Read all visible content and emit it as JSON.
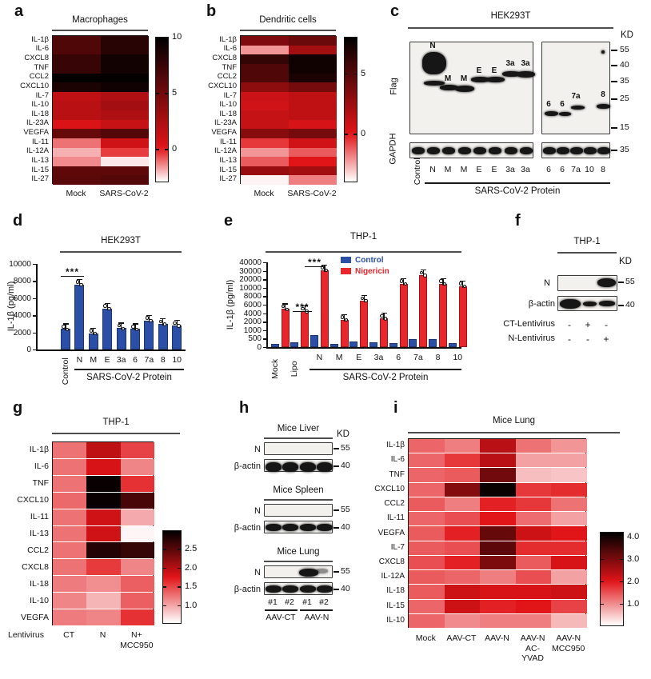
{
  "chart_data": {
    "a": {
      "type": "heatmap",
      "label": "a",
      "title": "Macrophages",
      "rows": [
        "IL-1β",
        "IL-6",
        "CXCL8",
        "TNF",
        "CCL2",
        "CXCL10",
        "IL-7",
        "IL-10",
        "IL-18",
        "IL-23A",
        "VEGFA",
        "IL-11",
        "IL-12A",
        "IL-13",
        "IL-15",
        "IL-27"
      ],
      "cols": [
        "Mock",
        "SARS-CoV-2"
      ],
      "col_sub": [
        "",
        ""
      ],
      "values": [
        [
          6.5,
          8.2
        ],
        [
          6.5,
          8.2
        ],
        [
          7.5,
          9.2
        ],
        [
          7.5,
          9.2
        ],
        [
          9.8,
          9.8
        ],
        [
          8.8,
          9.3
        ],
        [
          1.5,
          2.2
        ],
        [
          1.8,
          2.8
        ],
        [
          1.8,
          2.3
        ],
        [
          0.3,
          1.2
        ],
        [
          5.5,
          6.3
        ],
        [
          -1.2,
          0.8
        ],
        [
          -2.0,
          -0.5
        ],
        [
          -1.5,
          -2.7
        ],
        [
          5.8,
          5.8
        ],
        [
          6.0,
          6.3
        ]
      ],
      "scale": {
        "min": -3,
        "red": 0,
        "max": 10
      },
      "colorbar_ticks": [
        {
          "v": 10,
          "t": "10"
        },
        {
          "v": 5,
          "t": "5"
        },
        {
          "v": 0,
          "t": "0"
        }
      ]
    },
    "b": {
      "type": "heatmap",
      "label": "b",
      "title": "Dendritic cells",
      "rows": [
        "IL-1β",
        "IL-6",
        "CXCL8",
        "TNF",
        "CCL2",
        "CXCL10",
        "IL-7",
        "IL-10",
        "IL-18",
        "IL-23A",
        "VEGFA",
        "IL-11",
        "IL-12A",
        "IL-13",
        "IL-15",
        "IL-27"
      ],
      "cols": [
        "Mock",
        "SARS-CoV-2"
      ],
      "col_sub": [
        "",
        ""
      ],
      "values": [
        [
          3.5,
          4.2
        ],
        [
          -2.2,
          2.2
        ],
        [
          6.2,
          7.4
        ],
        [
          5.2,
          7.4
        ],
        [
          5.2,
          7.0
        ],
        [
          3.0,
          3.8
        ],
        [
          0.8,
          1.2
        ],
        [
          0.6,
          1.2
        ],
        [
          1.0,
          1.2
        ],
        [
          1.0,
          0.4
        ],
        [
          3.2,
          3.8
        ],
        [
          -0.6,
          0.6
        ],
        [
          -2.2,
          -1.2
        ],
        [
          -1.2,
          0.0
        ],
        [
          2.6,
          2.2
        ],
        [
          -3.8,
          -1.8
        ]
      ],
      "scale": {
        "min": -4,
        "red": 0,
        "max": 8
      },
      "colorbar_ticks": [
        {
          "v": 5,
          "t": "5"
        },
        {
          "v": 0,
          "t": "0"
        }
      ]
    },
    "d": {
      "type": "bar",
      "label": "d",
      "title": "HEK293T",
      "ylabel": "IL-1β (pg/ml)",
      "yticks": [
        {
          "v": 0,
          "t": "0"
        },
        {
          "v": 2000,
          "t": "2000"
        },
        {
          "v": 4000,
          "t": "4000"
        },
        {
          "v": 6000,
          "t": "6000"
        },
        {
          "v": 8000,
          "t": "8000"
        },
        {
          "v": 10000,
          "t": "10000"
        }
      ],
      "categories": [
        "Control",
        "N",
        "M",
        "E",
        "3a",
        "6",
        "7a",
        "8",
        "10"
      ],
      "values": [
        2400,
        7600,
        1900,
        4800,
        2500,
        2400,
        3400,
        3000,
        2800
      ],
      "bar_color": "#2b4fa7",
      "sig": "***",
      "group_label": "SARS-CoV-2 Protein"
    },
    "e": {
      "type": "grouped-bar",
      "label": "e",
      "title": "THP-1",
      "ylabel": "IL-1β (pg/ml)",
      "yticks": [
        {
          "v": 0,
          "t": "0"
        },
        {
          "v": 500,
          "t": "500"
        },
        {
          "v": 1000,
          "t": "1000"
        },
        {
          "v": 2000,
          "t": "2000"
        },
        {
          "v": 4000,
          "t": "4000"
        },
        {
          "v": 6000,
          "t": "6000"
        },
        {
          "v": 8000,
          "t": "8000"
        },
        {
          "v": 10000,
          "t": "10000"
        },
        {
          "v": 20000,
          "t": "20000"
        },
        {
          "v": 30000,
          "t": "30000"
        },
        {
          "v": 40000,
          "t": "40000"
        }
      ],
      "categories": [
        "Mock",
        "Lipo",
        "N",
        "M",
        "E",
        "3a",
        "6",
        "7a",
        "8",
        "10"
      ],
      "series": [
        {
          "name": "Control",
          "color": "#2b4fa7",
          "values": [
            200,
            280,
            700,
            180,
            350,
            300,
            250,
            480,
            450,
            220
          ]
        },
        {
          "name": "Nigericin",
          "color": "#e8262b",
          "values": [
            5000,
            4500,
            31000,
            2500,
            7000,
            2800,
            15000,
            25000,
            15000,
            12000
          ]
        }
      ],
      "sig_upper": "***",
      "sig_lower": "***",
      "group_label": "SARS-CoV-2 Protein"
    },
    "g": {
      "type": "heatmap",
      "label": "g",
      "title": "THP-1",
      "rows": [
        "IL-1β",
        "IL-6",
        "TNF",
        "CXCL10",
        "IL-11",
        "IL-13",
        "CCL2",
        "CXCL8",
        "IL-18",
        "IL-10",
        "VEGFA"
      ],
      "cols": [
        "CT",
        "N",
        "N+"
      ],
      "col_sub": [
        "",
        "",
        "MCC950"
      ],
      "xaxis_label": "Lentivirus",
      "values": [
        [
          1.25,
          1.95,
          1.5
        ],
        [
          1.25,
          1.8,
          1.15
        ],
        [
          1.25,
          2.95,
          1.6
        ],
        [
          1.3,
          2.95,
          2.6
        ],
        [
          1.25,
          1.85,
          0.95
        ],
        [
          1.25,
          1.85,
          0.55
        ],
        [
          1.25,
          2.8,
          2.7
        ],
        [
          1.25,
          1.55,
          1.15
        ],
        [
          1.2,
          1.1,
          1.35
        ],
        [
          1.15,
          0.9,
          1.35
        ],
        [
          1.2,
          1.15,
          1.6
        ]
      ],
      "scale": {
        "min": 0.5,
        "red": 1.75,
        "max": 3.0
      },
      "colorbar_ticks": [
        {
          "v": 2.5,
          "t": "2.5"
        },
        {
          "v": 2.0,
          "t": "2.0"
        },
        {
          "v": 1.5,
          "t": "1.5"
        },
        {
          "v": 1.0,
          "t": "1.0"
        }
      ]
    },
    "i": {
      "type": "heatmap",
      "label": "i",
      "title": "Mice Lung",
      "rows": [
        "IL-1β",
        "IL-6",
        "TNF",
        "CXCL10",
        "CCL2",
        "IL-11",
        "VEGFA",
        "IL-7",
        "CXCL8",
        "IL-12A",
        "IL-18",
        "IL-15",
        "IL-10"
      ],
      "cols": [
        "Mock",
        "AAV-CT",
        "AAV-N",
        "AAV-N",
        "AAV-N"
      ],
      "col_sub": [
        "",
        "",
        "",
        "AC-\nYVAD",
        "MCC950"
      ],
      "values": [
        [
          1.3,
          1.1,
          2.4,
          1.2,
          0.9
        ],
        [
          1.3,
          1.7,
          2.4,
          0.8,
          0.8
        ],
        [
          1.3,
          1.4,
          3.1,
          0.55,
          0.5
        ],
        [
          1.3,
          2.9,
          4.1,
          1.7,
          1.8
        ],
        [
          1.4,
          1.1,
          1.9,
          1.7,
          1.2
        ],
        [
          1.3,
          1.5,
          2.0,
          1.25,
          0.8
        ],
        [
          1.4,
          1.9,
          3.2,
          2.2,
          2.0
        ],
        [
          1.4,
          1.5,
          3.3,
          1.8,
          1.8
        ],
        [
          1.5,
          1.9,
          3.0,
          1.4,
          2.1
        ],
        [
          1.4,
          1.3,
          1.1,
          1.5,
          0.8
        ],
        [
          1.4,
          2.2,
          2.1,
          2.1,
          2.2
        ],
        [
          1.3,
          2.2,
          1.9,
          2.0,
          1.6
        ],
        [
          1.3,
          1.0,
          1.1,
          1.1,
          0.6
        ]
      ],
      "scale": {
        "min": 0,
        "red": 2.0,
        "max": 4.2
      },
      "colorbar_ticks": [
        {
          "v": 4.0,
          "t": "4.0"
        },
        {
          "v": 3.0,
          "t": "3.0"
        },
        {
          "v": 2.0,
          "t": "2.0"
        },
        {
          "v": 1.0,
          "t": "1.0"
        }
      ]
    }
  },
  "panels": {
    "c": {
      "label": "c",
      "title": "HEK293T",
      "kd": "KD",
      "antibody1": "Flag",
      "antibody2": "GAPDH",
      "left_lanes": [
        "Control",
        "N",
        "M",
        "M",
        "E",
        "E",
        "3a",
        "3a"
      ],
      "right_lanes": [
        "6",
        "6",
        "7a",
        "10",
        "8"
      ],
      "band_labels": [
        "N",
        "M",
        "M",
        "E",
        "E",
        "3a",
        "3a",
        "6",
        "6",
        "7a",
        "8"
      ],
      "flag_markers": [
        "55",
        "40",
        "35",
        "25",
        "15"
      ],
      "gapdh_marker": "35",
      "group_label": "SARS-CoV-2 Protein"
    },
    "f": {
      "label": "f",
      "title": "THP-1",
      "kd": "KD",
      "row1": "N",
      "row1_marker": "55",
      "row2": "β-actin",
      "row2_marker": "40",
      "cond1_name": "CT-Lentivirus",
      "cond1": [
        "-",
        "+",
        "-"
      ],
      "cond2_name": "N-Lentivirus",
      "cond2": [
        "-",
        "-",
        "+"
      ]
    },
    "h": {
      "label": "h",
      "kd": "KD",
      "blots": [
        {
          "title": "Mice Liver",
          "row1": "N",
          "m1": "55",
          "row2": "β-actin",
          "m2": "40"
        },
        {
          "title": "Mice Spleen",
          "row1": "N",
          "m1": "55",
          "row2": "β-actin",
          "m2": "40"
        },
        {
          "title": "Mice Lung",
          "row1": "N",
          "m1": "55",
          "row2": "β-actin",
          "m2": "40"
        }
      ],
      "lane_labels": [
        "#1",
        "#2",
        "#1",
        "#2"
      ],
      "group_labels": [
        "AAV-CT",
        "AAV-N"
      ]
    }
  }
}
